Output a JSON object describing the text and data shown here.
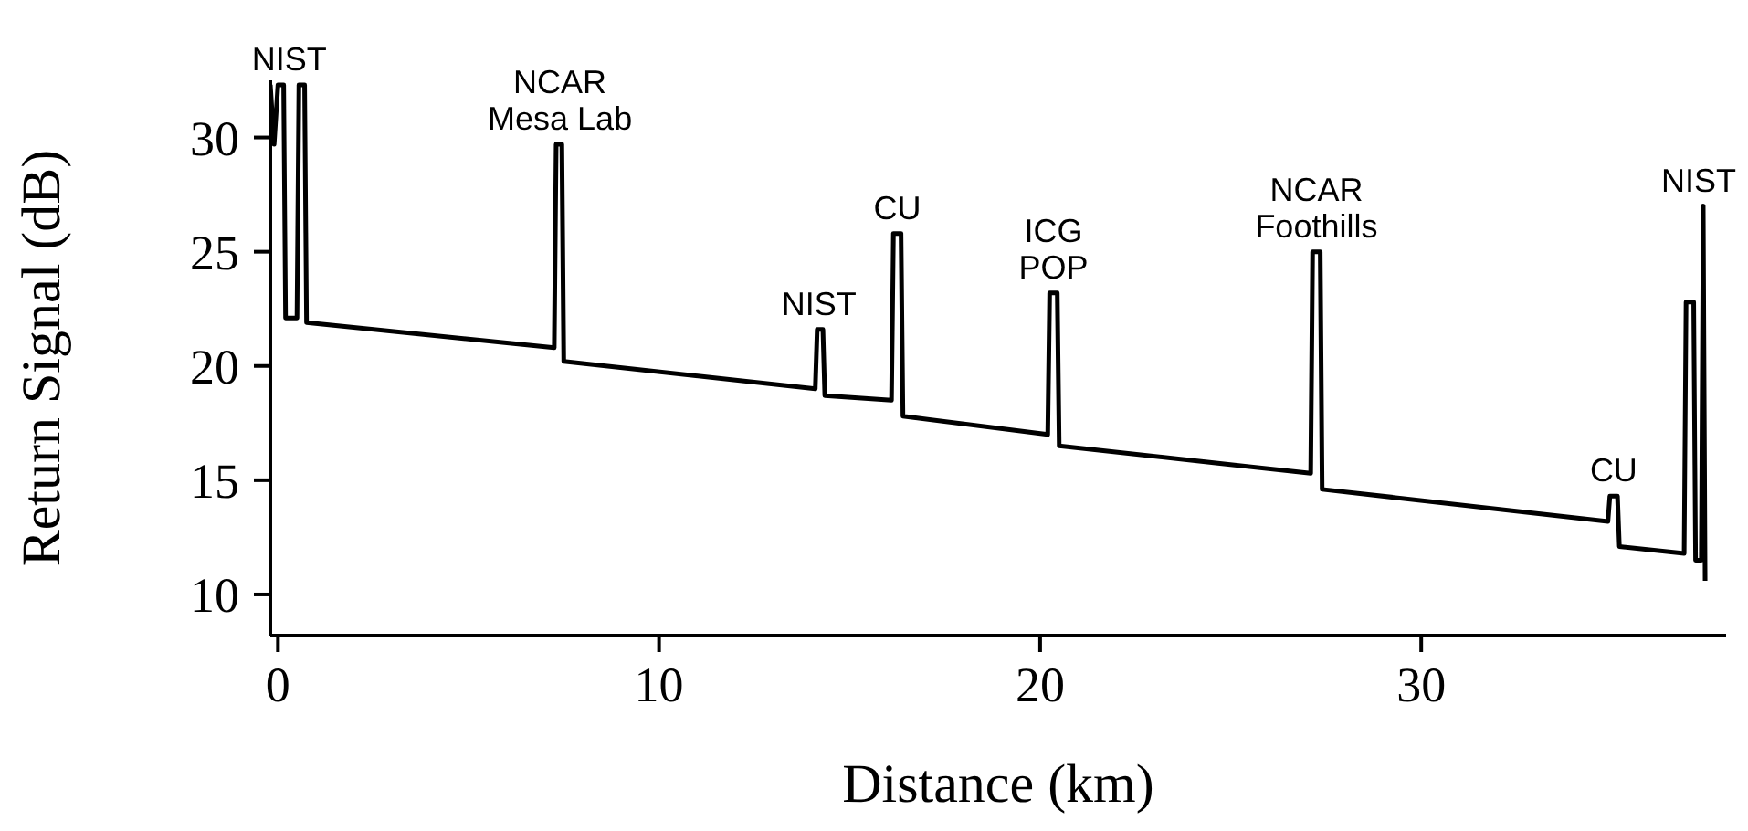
{
  "chart_data": {
    "type": "line",
    "xlabel": "Distance (km)",
    "ylabel": "Return Signal (dB)",
    "x": [
      -0.2,
      -0.1,
      0,
      0.15,
      0.2,
      0.5,
      0.55,
      0.7,
      0.75,
      7.25,
      7.3,
      7.45,
      7.5,
      14.1,
      14.15,
      14.3,
      14.35,
      16.1,
      16.15,
      16.35,
      16.4,
      20.2,
      20.25,
      20.45,
      20.5,
      27.1,
      27.15,
      27.35,
      27.4,
      34.9,
      34.95,
      35.15,
      35.2,
      36.9,
      36.95,
      37.15,
      37.2,
      37.35,
      37.4,
      37.45
    ],
    "series": [
      {
        "color": "#000000",
        "values": [
          32.3,
          29.7,
          32.3,
          32.3,
          22.1,
          22.1,
          32.3,
          32.3,
          21.9,
          20.8,
          29.7,
          29.7,
          20.2,
          19.0,
          21.6,
          21.6,
          18.7,
          18.5,
          25.8,
          25.8,
          17.8,
          17.0,
          23.2,
          23.2,
          16.5,
          15.3,
          25.0,
          25.0,
          14.6,
          13.2,
          14.3,
          14.3,
          12.1,
          11.8,
          22.8,
          22.8,
          11.5,
          11.5,
          27.0,
          10.6
        ]
      }
    ],
    "xlim": [
      -0.2,
      38
    ],
    "xticks": [
      0,
      10,
      20,
      30
    ],
    "ylim": [
      8.2,
      32.5
    ],
    "yticks": [
      10,
      15,
      20,
      25,
      30
    ],
    "grid": false,
    "legend": false,
    "marker": "none",
    "line_style": "solid",
    "annotations": [
      {
        "text": "NIST",
        "x": 0.3,
        "y": 32.3
      },
      {
        "text": "NCAR\nMesa Lab",
        "x": 7.4,
        "y": 29.7
      },
      {
        "text": "NIST",
        "x": 14.2,
        "y": 21.6
      },
      {
        "text": "CU",
        "x": 16.25,
        "y": 25.8
      },
      {
        "text": "ICG\nPOP",
        "x": 20.35,
        "y": 23.2
      },
      {
        "text": "NCAR\nFoothills",
        "x": 27.25,
        "y": 25.0
      },
      {
        "text": "CU",
        "x": 35.05,
        "y": 14.3
      },
      {
        "text": "NIST",
        "x": 37.4,
        "y": 27.0
      }
    ]
  }
}
